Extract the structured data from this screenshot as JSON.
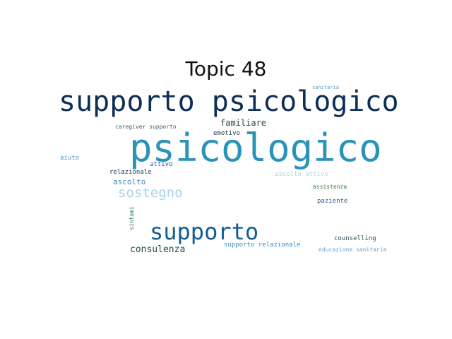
{
  "title": "Topic 48",
  "words": [
    {
      "text": "supporto psicologico",
      "color": "#0f2e55"
    },
    {
      "text": "psicologico",
      "color": "#2a93b8"
    },
    {
      "text": "supporto",
      "color": "#135e8f"
    },
    {
      "text": "sostegno",
      "color": "#a7d3e4"
    },
    {
      "text": "consulenza",
      "color": "#1e4d49"
    },
    {
      "text": "familiare",
      "color": "#2a4a4a"
    },
    {
      "text": "ascolto",
      "color": "#3a87b5"
    },
    {
      "text": "emotivo",
      "color": "#14384a"
    },
    {
      "text": "relazionale",
      "color": "#1c3460"
    },
    {
      "text": "caregiver supporto",
      "color": "#335b6b"
    },
    {
      "text": "attivo",
      "color": "#2e55a0"
    },
    {
      "text": "aiuto",
      "color": "#4e93c2"
    },
    {
      "text": "ascolto attivo",
      "color": "#b3d4e3"
    },
    {
      "text": "assistenza",
      "color": "#2b7a3a"
    },
    {
      "text": "paziente",
      "color": "#2c5e8c"
    },
    {
      "text": "counselling",
      "color": "#2e5256"
    },
    {
      "text": "supporto relazionale",
      "color": "#3b8bc1"
    },
    {
      "text": "educazione sanitaria",
      "color": "#68a6cc"
    },
    {
      "text": "sanitaria",
      "color": "#5e9ac3"
    },
    {
      "text": "sintomi",
      "color": "#2f6e5f"
    }
  ]
}
